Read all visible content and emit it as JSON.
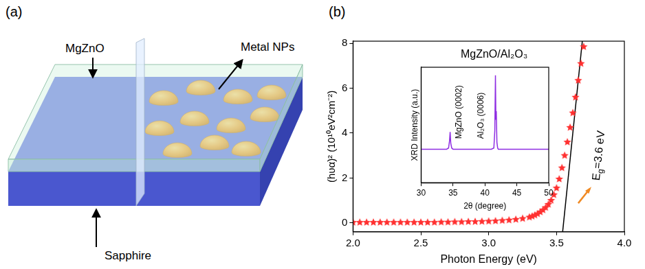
{
  "panels": [
    "(a)",
    "(b)"
  ],
  "diagram": {
    "labels": {
      "layer": "MgZnO",
      "particles": "Metal NPs",
      "substrate": "Sapphire"
    }
  },
  "chart_data": [
    {
      "type": "scatter",
      "title": "MgZnO/Al₂O₃",
      "x_label": "Photon Energy (eV)",
      "y_label": "(hυα)² (10¹⁰eV²cm⁻²)",
      "xlim": [
        2.0,
        4.0
      ],
      "xticks": [
        {
          "value": 2,
          "label": "2.0"
        },
        {
          "value": 2.5,
          "label": "2.5"
        },
        {
          "value": 3,
          "label": "3.0"
        },
        {
          "value": 3.5,
          "label": "3.5"
        },
        {
          "value": 4,
          "label": "4.0"
        }
      ],
      "ylim": [
        -0.4,
        8.1
      ],
      "yticks": [
        0,
        2,
        4,
        6,
        8
      ],
      "grid": false,
      "annotations": [
        {
          "text": [
            "E",
            "g",
            "=3.6 eV"
          ]
        }
      ],
      "series": [
        {
          "type": "scatter",
          "marker": "star",
          "color": "#ff3030",
          "x": [
            2.0,
            2.05,
            2.1,
            2.15,
            2.2,
            2.25,
            2.3,
            2.35,
            2.4,
            2.45,
            2.5,
            2.55,
            2.6,
            2.65,
            2.7,
            2.75,
            2.8,
            2.85,
            2.9,
            2.95,
            3.0,
            3.05,
            3.1,
            3.15,
            3.2,
            3.25,
            3.3,
            3.32,
            3.34,
            3.36,
            3.38,
            3.4,
            3.42,
            3.44,
            3.46,
            3.48,
            3.5,
            3.52,
            3.54,
            3.56,
            3.58,
            3.6,
            3.62,
            3.64,
            3.66,
            3.68,
            3.7
          ],
          "values": [
            0.02,
            0.02,
            0.02,
            0.02,
            0.02,
            0.02,
            0.02,
            0.02,
            0.02,
            0.02,
            0.02,
            0.02,
            0.02,
            0.03,
            0.03,
            0.04,
            0.04,
            0.05,
            0.05,
            0.06,
            0.07,
            0.08,
            0.1,
            0.12,
            0.15,
            0.19,
            0.25,
            0.29,
            0.34,
            0.4,
            0.48,
            0.57,
            0.68,
            0.82,
            1.0,
            1.25,
            1.55,
            1.95,
            2.45,
            3.0,
            3.6,
            4.25,
            4.9,
            5.6,
            6.35,
            7.1,
            7.85
          ]
        },
        {
          "type": "line",
          "line_style": "solid",
          "color": "#000000",
          "x": [
            3.545,
            3.69
          ],
          "values": [
            -0.4,
            8.1
          ]
        }
      ]
    },
    {
      "type": "line",
      "x_label": "2θ (degree)",
      "y_label": "XRD Intensity (a.u.)",
      "xlim": [
        30,
        50
      ],
      "xticks": [
        30,
        35,
        40,
        45,
        50
      ],
      "ylim": [
        0,
        1
      ],
      "yticks": [],
      "tick_labels": "x",
      "grid": false,
      "annotations": [
        {
          "text": "MgZnO (0002)"
        },
        {
          "text": "Al₂O₃ (0006)"
        }
      ],
      "series": [
        {
          "type": "line",
          "line_style": "solid",
          "color": "#8e2de2",
          "x": [
            30,
            31,
            32,
            33,
            34,
            34.3,
            34.45,
            34.55,
            34.65,
            34.8,
            35,
            36,
            37,
            38,
            39,
            40,
            41,
            41.4,
            41.55,
            41.65,
            41.72,
            41.78,
            41.88,
            42.0,
            42.1,
            43,
            44,
            45,
            46,
            47,
            48,
            49,
            50
          ],
          "values": [
            0.29,
            0.29,
            0.29,
            0.29,
            0.29,
            0.3,
            0.36,
            0.44,
            0.34,
            0.3,
            0.29,
            0.29,
            0.29,
            0.29,
            0.29,
            0.29,
            0.29,
            0.3,
            0.45,
            0.93,
            0.55,
            0.62,
            0.35,
            0.3,
            0.29,
            0.29,
            0.29,
            0.29,
            0.29,
            0.29,
            0.29,
            0.29,
            0.29
          ]
        }
      ]
    }
  ]
}
